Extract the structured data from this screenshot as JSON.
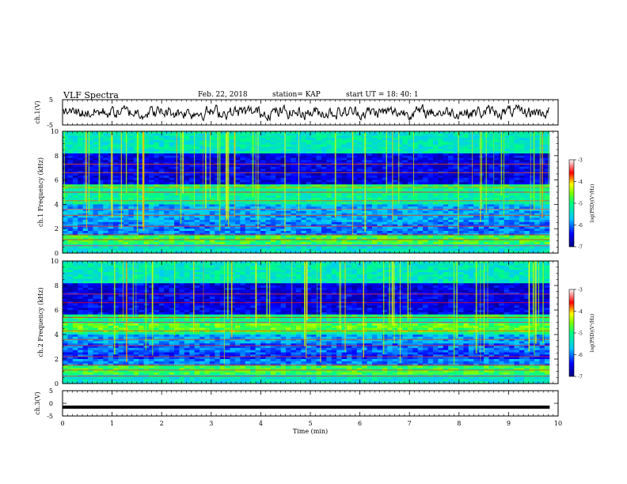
{
  "header": {
    "title": "VLF Spectra",
    "date": "Feb. 22, 2018",
    "station": "station= KAP",
    "start": "start  UT =   18: 40: 1"
  },
  "chart_data": {
    "type": "heatmap",
    "title": "VLF Spectra",
    "xlabel": "Time (min)",
    "xlim": [
      0,
      10
    ],
    "x_ticks": [
      "0",
      "1",
      "2",
      "3",
      "4",
      "5",
      "6",
      "7",
      "8",
      "9",
      "10"
    ],
    "data_x_end": 9.83,
    "panels": [
      {
        "id": "ch1-waveform",
        "type": "line",
        "ylabel": "ch.1(V)",
        "ylim": [
          -5,
          5
        ],
        "y_ticks": [
          "5",
          "-5"
        ],
        "approx_level": 0.0,
        "approx_amplitude": 2.5
      },
      {
        "id": "ch1-spectrogram",
        "type": "heatmap",
        "ylabel": "ch.1 Frequency (kHz)",
        "ylim": [
          0,
          10
        ],
        "y_ticks": [
          "0",
          "2",
          "4",
          "6",
          "8",
          "10"
        ],
        "colorbar": {
          "label": "log(PSD)(V²/Hz)",
          "range": [
            -7,
            -3
          ],
          "ticks": [
            "-3",
            "-4",
            "-5",
            "-6",
            "-7"
          ]
        }
      },
      {
        "id": "ch2-spectrogram",
        "type": "heatmap",
        "ylabel": "ch.2 Frequency (kHz)",
        "ylim": [
          0,
          10
        ],
        "y_ticks": [
          "0",
          "2",
          "4",
          "6",
          "8",
          "10"
        ],
        "colorbar": {
          "label": "log(PSD)(V²/Hz)",
          "range": [
            -7,
            -3
          ],
          "ticks": [
            "-3",
            "-4",
            "-5",
            "-6",
            "-7"
          ]
        }
      },
      {
        "id": "ch3-waveform",
        "type": "line",
        "ylabel": "ch.3(V)",
        "ylim": [
          -5,
          5
        ],
        "y_ticks": [
          "5",
          "0",
          "-5"
        ],
        "approx_level": -1.5
      }
    ]
  }
}
